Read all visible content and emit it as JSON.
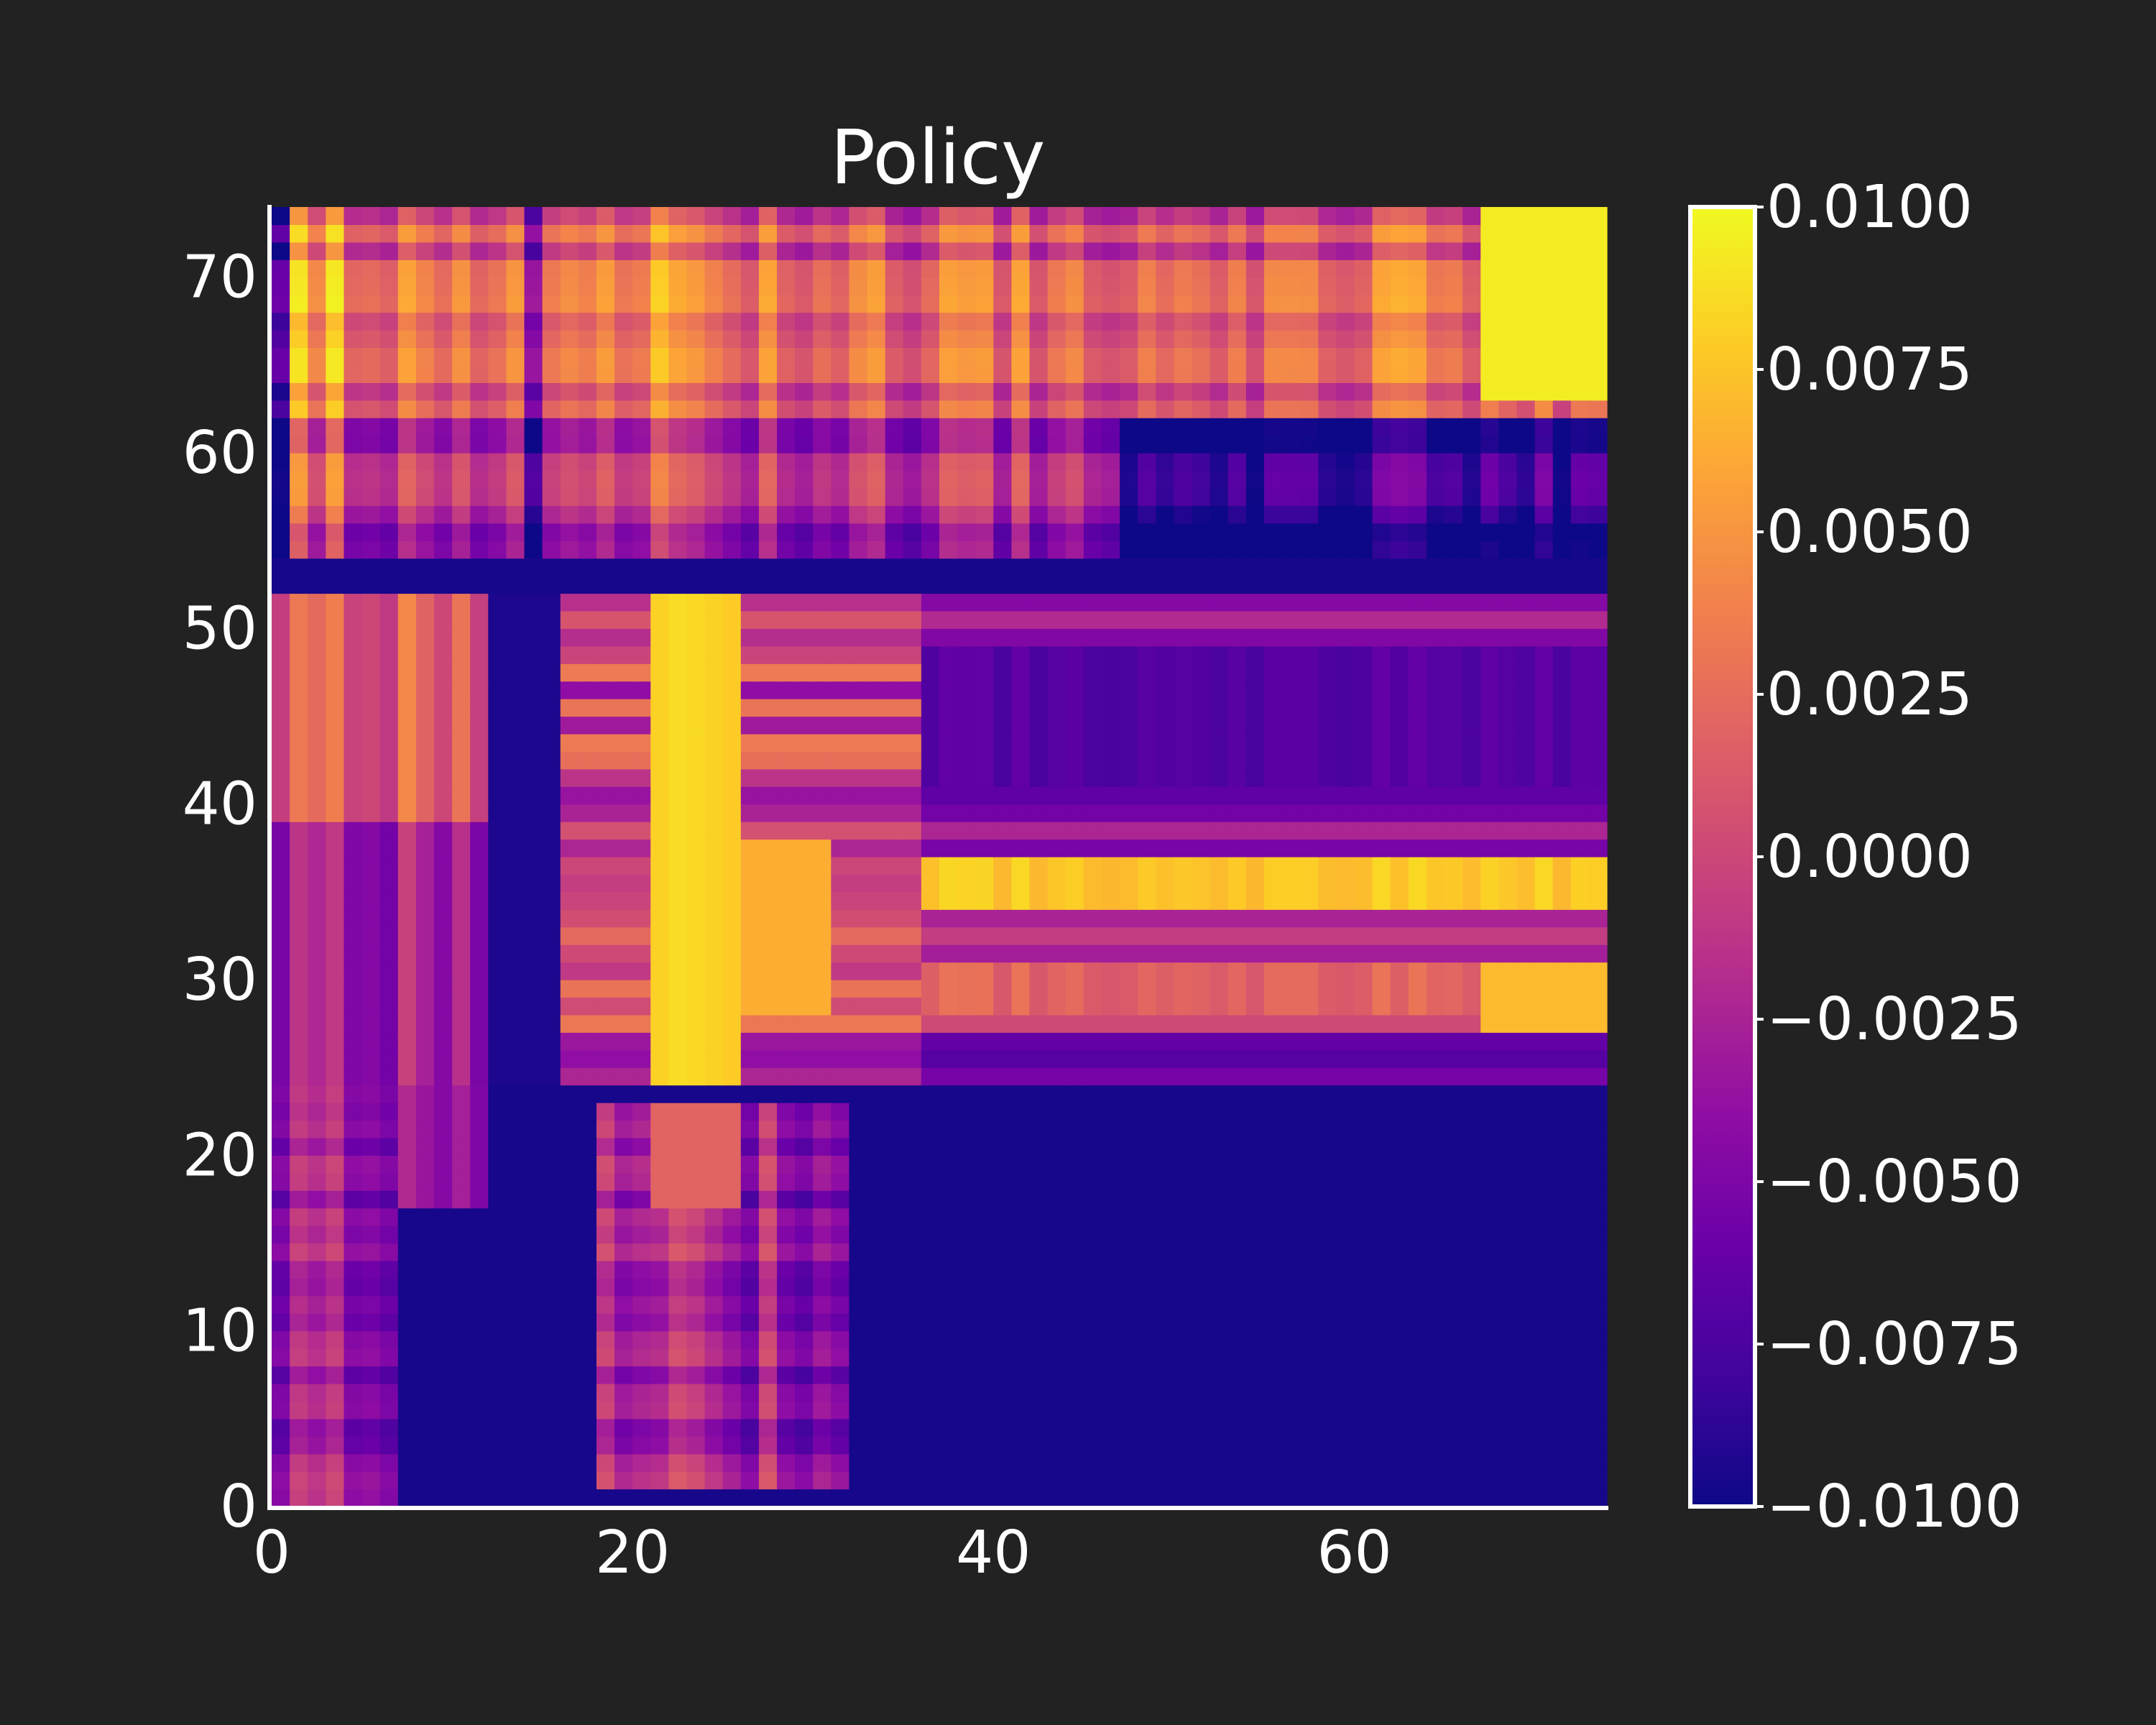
{
  "colors": {
    "background": "#222222",
    "axis": "#ffffff",
    "text": "#ffffff"
  },
  "chart_data": {
    "type": "heatmap",
    "title": "Policy",
    "xlabel": "",
    "ylabel": "",
    "xlim": [
      0,
      74
    ],
    "ylim": [
      0,
      74
    ],
    "grid": false,
    "x_ticks": [
      0,
      20,
      40,
      60
    ],
    "y_ticks": [
      0,
      10,
      20,
      30,
      40,
      50,
      60,
      70
    ],
    "colormap": "plasma",
    "value_range": [
      -0.01,
      0.01
    ],
    "colorbar": {
      "position": "right",
      "ticks": [
        "0.0100",
        "0.0075",
        "0.0050",
        "0.0025",
        "0.0000",
        "−0.0025",
        "−0.0050",
        "−0.0075",
        "−0.0100"
      ]
    },
    "grid_size": [
      74,
      74
    ]
  }
}
